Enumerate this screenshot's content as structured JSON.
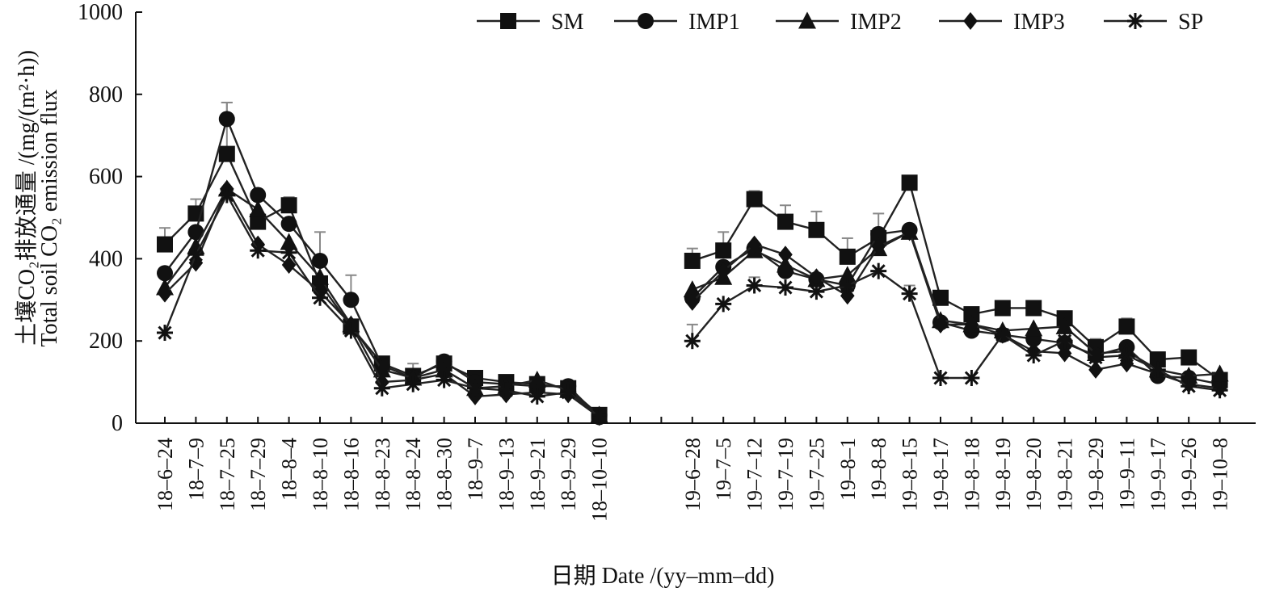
{
  "chart_data": {
    "type": "line",
    "title": "",
    "ylabel_line1": "土壤CO₂排放通量 /(mg/(m²·h))",
    "ylabel_line2": "Total soil CO₂ emission flux",
    "xlabel": "日期 Date /(yy–mm–dd)",
    "ylim": [
      0,
      1000
    ],
    "yticks": [
      "0",
      "200",
      "400",
      "600",
      "800",
      "1000"
    ],
    "legend_position": "top-right",
    "grid": false,
    "categories": [
      "18–6–24",
      "18–7–9",
      "18–7–25",
      "18–7–29",
      "18–8–4",
      "18–8–10",
      "18–8–16",
      "18–8–23",
      "18–8–24",
      "18–8–30",
      "18–9–7",
      "18–9–13",
      "18–9–21",
      "18–9–29",
      "18–10–10",
      "",
      "",
      "19–6–28",
      "19–7–5",
      "19–7–12",
      "19–7–19",
      "19–7–25",
      "19–8–1",
      "19–8–8",
      "19–8–15",
      "19–8–17",
      "19–8–18",
      "19–8–19",
      "19–8–20",
      "19–8–21",
      "19–8–29",
      "19–9–11",
      "19–9–17",
      "19–9–26",
      "19–10–8"
    ],
    "series": [
      {
        "name": "SM",
        "marker": "square",
        "values": [
          435,
          510,
          655,
          490,
          530,
          340,
          235,
          145,
          115,
          145,
          110,
          100,
          95,
          85,
          20,
          null,
          null,
          395,
          420,
          545,
          490,
          470,
          405,
          450,
          585,
          305,
          265,
          280,
          280,
          255,
          185,
          235,
          155,
          160,
          105
        ],
        "errors": [
          40,
          35,
          125,
          20,
          20,
          0,
          10,
          0,
          30,
          0,
          0,
          0,
          0,
          0,
          0,
          null,
          null,
          30,
          45,
          20,
          40,
          45,
          45,
          60,
          0,
          0,
          0,
          0,
          0,
          0,
          20,
          20,
          0,
          0,
          0
        ]
      },
      {
        "name": "IMP1",
        "marker": "circle",
        "values": [
          365,
          465,
          740,
          555,
          485,
          395,
          300,
          140,
          110,
          150,
          100,
          95,
          90,
          90,
          15,
          null,
          null,
          305,
          380,
          425,
          370,
          350,
          335,
          460,
          470,
          245,
          225,
          215,
          205,
          195,
          165,
          185,
          115,
          110,
          95
        ],
        "errors": [
          0,
          0,
          40,
          0,
          0,
          70,
          60,
          0,
          0,
          0,
          0,
          0,
          0,
          0,
          0,
          null,
          null,
          0,
          0,
          0,
          0,
          0,
          0,
          0,
          0,
          0,
          0,
          0,
          0,
          0,
          0,
          0,
          0,
          0,
          0
        ]
      },
      {
        "name": "IMP2",
        "marker": "triangle",
        "values": [
          330,
          430,
          570,
          520,
          440,
          355,
          240,
          130,
          110,
          130,
          85,
          90,
          105,
          80,
          20,
          null,
          null,
          325,
          355,
          420,
          385,
          350,
          360,
          425,
          465,
          250,
          240,
          225,
          230,
          235,
          170,
          175,
          130,
          115,
          120
        ],
        "errors": [
          0,
          0,
          0,
          0,
          0,
          0,
          0,
          0,
          0,
          0,
          0,
          0,
          0,
          0,
          0,
          null,
          null,
          0,
          0,
          0,
          0,
          0,
          0,
          0,
          0,
          0,
          0,
          0,
          0,
          0,
          0,
          0,
          0,
          0,
          0
        ]
      },
      {
        "name": "IMP3",
        "marker": "diamond",
        "values": [
          315,
          390,
          570,
          435,
          385,
          320,
          240,
          100,
          105,
          120,
          65,
          70,
          75,
          70,
          15,
          null,
          null,
          295,
          370,
          435,
          410,
          355,
          310,
          430,
          465,
          240,
          240,
          215,
          175,
          170,
          130,
          145,
          120,
          95,
          85
        ],
        "errors": [
          0,
          0,
          0,
          0,
          0,
          0,
          0,
          0,
          0,
          0,
          0,
          0,
          0,
          0,
          0,
          null,
          null,
          0,
          0,
          0,
          0,
          0,
          0,
          0,
          0,
          0,
          0,
          0,
          0,
          0,
          0,
          0,
          0,
          0,
          0
        ]
      },
      {
        "name": "SP",
        "marker": "star",
        "values": [
          220,
          410,
          555,
          420,
          415,
          305,
          225,
          85,
          95,
          105,
          85,
          80,
          65,
          75,
          20,
          null,
          null,
          200,
          290,
          335,
          330,
          320,
          335,
          370,
          315,
          110,
          110,
          215,
          165,
          200,
          160,
          165,
          130,
          90,
          80
        ],
        "errors": [
          0,
          0,
          0,
          0,
          0,
          0,
          0,
          0,
          0,
          0,
          0,
          0,
          0,
          0,
          0,
          null,
          null,
          40,
          0,
          20,
          0,
          0,
          0,
          0,
          20,
          0,
          0,
          0,
          0,
          0,
          0,
          0,
          0,
          0,
          0
        ]
      }
    ]
  }
}
